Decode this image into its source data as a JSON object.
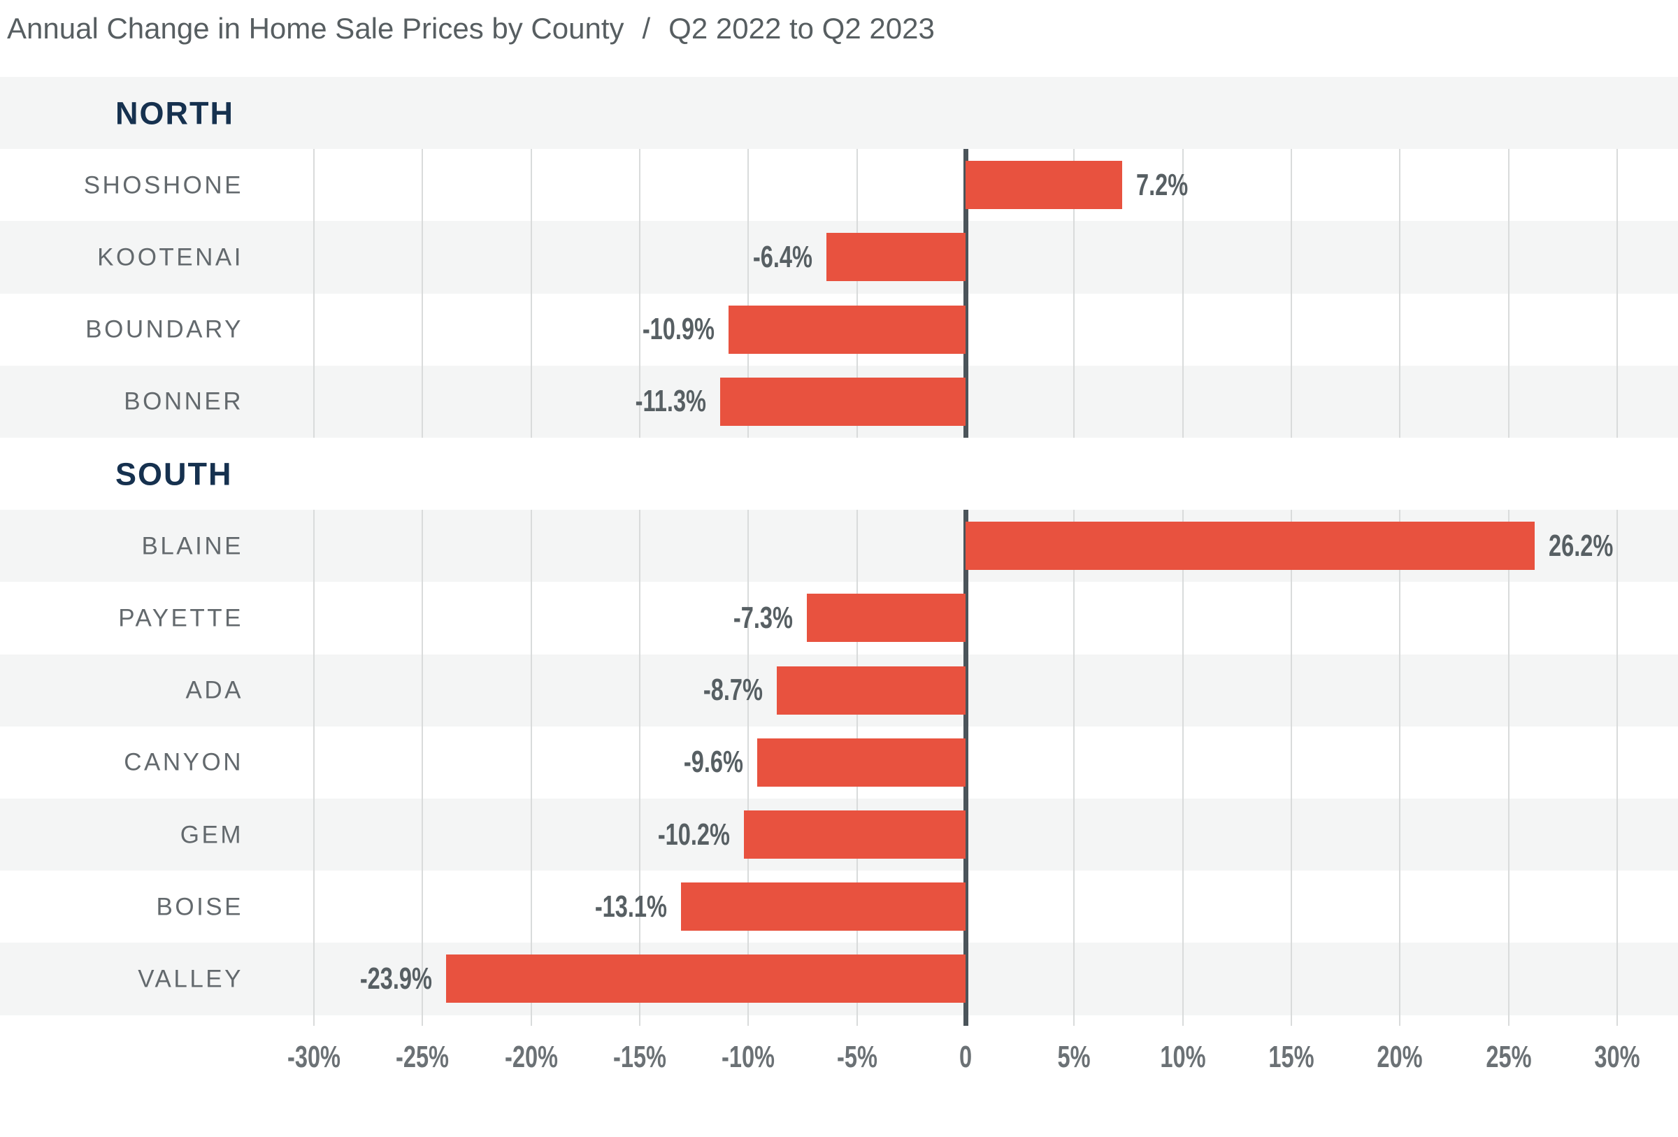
{
  "title": {
    "main": "Annual Change in Home Sale Prices by County",
    "separator": "/",
    "period": "Q2 2022 to Q2 2023"
  },
  "colors": {
    "bar": "#e8523f",
    "section_header": "#16314f",
    "band_gray": "#f4f5f5",
    "band_white": "#ffffff",
    "gridline": "#d9dbdb",
    "zero_line": "#4b545a",
    "county_label": "#63696d",
    "value_label": "#575f63",
    "tick_label": "#6b7175",
    "title_text": "#575e61"
  },
  "chart_data": {
    "type": "bar",
    "orientation": "horizontal",
    "title": "Annual Change in Home Sale Prices by County",
    "subtitle": "Q2 2022 to Q2 2023",
    "unit": "%",
    "axis": {
      "min": -30,
      "max": 30,
      "step": 5,
      "tick_labels": [
        "-30%",
        "-25%",
        "-20%",
        "-15%",
        "-10%",
        "-5%",
        "0",
        "5%",
        "10%",
        "15%",
        "20%",
        "25%",
        "30%"
      ]
    },
    "legend": "none",
    "grid": "vertical-only, interrupted at section headers",
    "groups": [
      {
        "label": "NORTH",
        "rows": [
          {
            "county": "SHOSHONE",
            "value": 7.2,
            "value_label": "7.2%"
          },
          {
            "county": "KOOTENAI",
            "value": -6.4,
            "value_label": "-6.4%"
          },
          {
            "county": "BOUNDARY",
            "value": -10.9,
            "value_label": "-10.9%"
          },
          {
            "county": "BONNER",
            "value": -11.3,
            "value_label": "-11.3%"
          }
        ]
      },
      {
        "label": "SOUTH",
        "rows": [
          {
            "county": "BLAINE",
            "value": 26.2,
            "value_label": "26.2%"
          },
          {
            "county": "PAYETTE",
            "value": -7.3,
            "value_label": "-7.3%"
          },
          {
            "county": "ADA",
            "value": -8.7,
            "value_label": "-8.7%"
          },
          {
            "county": "CANYON",
            "value": -9.6,
            "value_label": "-9.6%"
          },
          {
            "county": "GEM",
            "value": -10.2,
            "value_label": "-10.2%"
          },
          {
            "county": "BOISE",
            "value": -13.1,
            "value_label": "-13.1%"
          },
          {
            "county": "VALLEY",
            "value": -23.9,
            "value_label": "-23.9%"
          }
        ]
      }
    ]
  }
}
